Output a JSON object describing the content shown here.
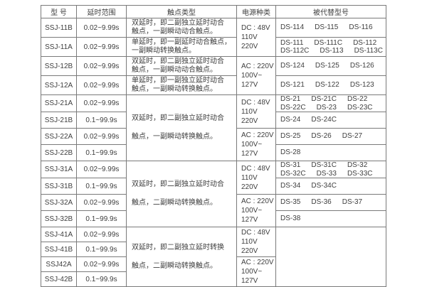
{
  "page": {
    "background_color": "#ffffff",
    "border_color": "#7a7a7a",
    "text_color": "#3e3e3e"
  },
  "table": {
    "headers": [
      {
        "id": "model",
        "label": "型 号"
      },
      {
        "id": "delay",
        "label": "延时范围"
      },
      {
        "id": "contact",
        "label": "触点类型"
      },
      {
        "id": "power",
        "label": "电源种类"
      },
      {
        "id": "replaced",
        "label": "被代替型号"
      }
    ],
    "rows": [
      {
        "model": "SSJ-11B",
        "delay": "0.02~9.99s",
        "contact": {
          "span": 1,
          "lines": [
            "双延时，即二副独立延时动合",
            "触点，一副瞬动动合触点。"
          ]
        },
        "power": {
          "span": 2,
          "lines": [
            "DC : 48V",
            "110V",
            "220V"
          ]
        },
        "replaced": {
          "span": 1,
          "lines": [
            [
              "DS-114",
              "DS-115",
              "DS-116"
            ]
          ]
        }
      },
      {
        "model": "SSJ-11A",
        "delay": "0.02~9.99s",
        "contact": {
          "span": 1,
          "lines": [
            "单延时，即一副延时动合触点，",
            "一副瞬动转换触点。"
          ]
        },
        "replaced": {
          "span": 1,
          "lines": [
            [
              "DS-111",
              "DS-111C",
              "DS-112"
            ],
            [
              "DS-112C",
              "DS-113",
              "DS-113C"
            ]
          ]
        }
      },
      {
        "model": "SSJ-12B",
        "delay": "0.02~9.99s",
        "contact": {
          "span": 1,
          "lines": [
            "双延时，即二副独立延时动合",
            "触点，一副瞬动动合触点。"
          ]
        },
        "power": {
          "span": 2,
          "lines": [
            "AC : 220V",
            "100V~",
            "127V"
          ]
        },
        "replaced": {
          "span": 1,
          "lines": [
            [
              "DS-124",
              "DS-125",
              "DS-126"
            ]
          ]
        }
      },
      {
        "model": "SSJ-12A",
        "delay": "0.02~9.99s",
        "contact": {
          "span": 1,
          "lines": [
            "单延时，即一副独立延时动合",
            "触点，一副瞬动转换触点。"
          ]
        },
        "replaced": {
          "span": 1,
          "lines": [
            [
              "DS-121",
              "DS-122",
              "DS-123"
            ]
          ]
        }
      },
      {
        "model": "SSJ-21A",
        "delay": "0.02~9.99s",
        "contact": {
          "span": 4,
          "lines": [
            "双延时，即二副独立延时动合",
            "触点，一副瞬动转换触点。"
          ]
        },
        "power": {
          "span": 2,
          "lines": [
            "DC : 48V",
            "110V",
            "220V"
          ]
        },
        "replaced": {
          "span": 1,
          "lines": [
            [
              "DS-21",
              "DS-21C",
              "DS-22"
            ],
            [
              "DS-22C",
              "DS-23",
              "DS-23C"
            ]
          ]
        }
      },
      {
        "model": "SSJ-21B",
        "delay": "0.1~99.9s",
        "replaced": {
          "span": 1,
          "lines": [
            [
              "DS-24",
              "DS-24C"
            ]
          ]
        }
      },
      {
        "model": "SSJ-22A",
        "delay": "0.02~9.99s",
        "power": {
          "span": 2,
          "lines": [
            "AC : 220V",
            "100V~",
            "127V"
          ]
        },
        "replaced": {
          "span": 1,
          "lines": [
            [
              "DS-25",
              "DS-26",
              "DS-27"
            ]
          ]
        }
      },
      {
        "model": "SSJ-22B",
        "delay": "0.1~99.9s",
        "replaced": {
          "span": 1,
          "lines": [
            [
              "DS-28"
            ]
          ]
        }
      },
      {
        "model": "SSJ-31A",
        "delay": "0.02~9.99s",
        "contact": {
          "span": 4,
          "lines": [
            "双延时，即二副独立延时动合",
            "触点，二副瞬动转换触点。"
          ]
        },
        "power": {
          "span": 2,
          "lines": [
            "DC : 48V",
            "110V",
            "220V"
          ]
        },
        "replaced": {
          "span": 1,
          "lines": [
            [
              "DS-31",
              "DS-31C",
              "DS-32"
            ],
            [
              "DS-32C",
              "DS-33",
              "DS-33C"
            ]
          ]
        }
      },
      {
        "model": "SSJ-31B",
        "delay": "0.1~99.9s",
        "replaced": {
          "span": 1,
          "lines": [
            [
              "DS-34",
              "DS-34C"
            ]
          ]
        }
      },
      {
        "model": "SSJ-32A",
        "delay": "0.02~9.99s",
        "power": {
          "span": 2,
          "lines": [
            "AC : 220V",
            "100V~",
            "127V"
          ]
        },
        "replaced": {
          "span": 1,
          "lines": [
            [
              "DS-35",
              "DS-36",
              "DS-37"
            ]
          ]
        }
      },
      {
        "model": "SSJ-32B",
        "delay": "0.1~99.9s",
        "replaced": {
          "span": 1,
          "lines": [
            [
              "DS-38"
            ]
          ]
        }
      },
      {
        "model": "SSJ-41A",
        "delay": "0.02~9.99s",
        "contact": {
          "span": 4,
          "lines": [
            "双延时，即二副独立延时转换",
            "触点，二副瞬动转换触点。"
          ]
        },
        "power": {
          "span": 2,
          "lines": [
            "DC : 48V",
            "110V",
            "220V"
          ]
        },
        "replaced": {
          "span": 4,
          "lines": []
        }
      },
      {
        "model": "SSJ-41B",
        "delay": "0.1~99.9s"
      },
      {
        "model": "SSJ42A",
        "delay": "0.02~9.99s",
        "power": {
          "span": 2,
          "lines": [
            "AC : 220V",
            "100V~",
            "127V"
          ]
        }
      },
      {
        "model": "SSJ-42B",
        "delay": "0.1~99.9s"
      }
    ]
  }
}
